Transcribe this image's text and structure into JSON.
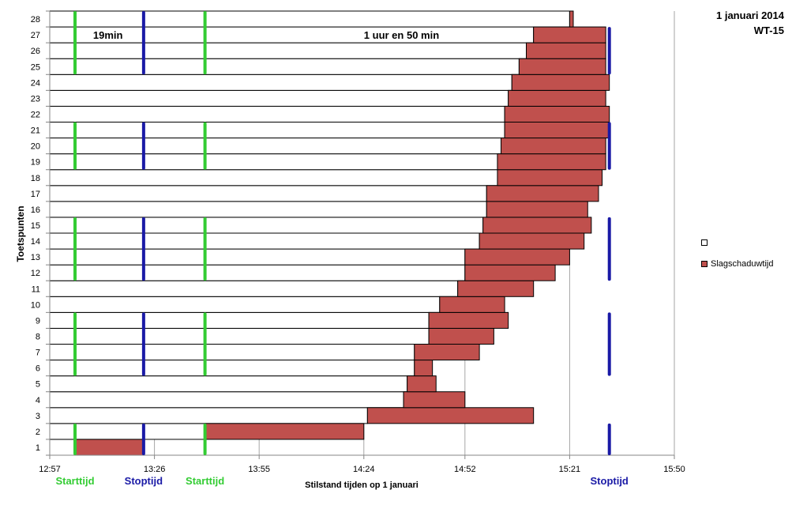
{
  "header": {
    "date": "1 januari 2014",
    "turbine": "WT-15"
  },
  "chart_data": {
    "type": "bar",
    "orientation": "horizontal",
    "stacked": true,
    "title": "",
    "xlabel": "Stilstand tijden op 1 januari",
    "ylabel": "Toetspunten",
    "x_ticks": [
      "12:57",
      "13:26",
      "13:55",
      "14:24",
      "14:52",
      "15:21",
      "15:50"
    ],
    "xlim": [
      "12:57",
      "15:50"
    ],
    "grid": "vertical",
    "legend_position": "right",
    "categories": [
      "1",
      "2",
      "3",
      "4",
      "5",
      "6",
      "7",
      "8",
      "9",
      "10",
      "11",
      "12",
      "13",
      "14",
      "15",
      "16",
      "17",
      "18",
      "19",
      "20",
      "21",
      "22",
      "23",
      "24",
      "25",
      "26",
      "27",
      "28"
    ],
    "series": [
      {
        "name": "",
        "color": "#ffffff",
        "start": [
          "12:57",
          "12:57",
          "12:57",
          "12:57",
          "12:57",
          "12:57",
          "12:57",
          "12:57",
          "12:57",
          "12:57",
          "12:57",
          "12:57",
          "12:57",
          "12:57",
          "12:57",
          "12:57",
          "12:57",
          "12:57",
          "12:57",
          "12:57",
          "12:57",
          "12:57",
          "12:57",
          "12:57",
          "12:57",
          "12:57",
          "12:57",
          "12:57"
        ],
        "end": [
          "13:04",
          "13:40",
          "14:25",
          "14:35",
          "14:36",
          "14:38",
          "14:38",
          "14:42",
          "14:42",
          "14:45",
          "14:50",
          "14:52",
          "14:52",
          "14:56",
          "14:57",
          "14:58",
          "14:58",
          "15:01",
          "15:01",
          "15:02",
          "15:03",
          "15:03",
          "15:04",
          "15:05",
          "15:07",
          "15:09",
          "15:11",
          "15:21"
        ]
      },
      {
        "name": "Slagschaduwtijd",
        "color": "#c0504d",
        "start": [
          "13:04",
          "13:40",
          "14:25",
          "14:35",
          "14:36",
          "14:38",
          "14:38",
          "14:42",
          "14:42",
          "14:45",
          "14:50",
          "14:52",
          "14:52",
          "14:56",
          "14:57",
          "14:58",
          "14:58",
          "15:01",
          "15:01",
          "15:02",
          "15:03",
          "15:03",
          "15:04",
          "15:05",
          "15:07",
          "15:09",
          "15:11",
          "15:21"
        ],
        "end": [
          "13:23",
          "14:24",
          "15:11",
          "14:52",
          "14:44",
          "14:43",
          "14:56",
          "15:00",
          "15:04",
          "15:03",
          "15:11",
          "15:17",
          "15:21",
          "15:25",
          "15:27",
          "15:26",
          "15:29",
          "15:30",
          "15:31",
          "15:31",
          "15:32",
          "15:32",
          "15:31",
          "15:32",
          "15:31",
          "15:31",
          "15:31",
          "15:22"
        ]
      }
    ],
    "annotations": [
      {
        "text": "19min",
        "row": 27,
        "x": "13:09"
      },
      {
        "text": "1 uur en 50 min",
        "row": 27,
        "x": "14:24"
      }
    ],
    "markers": [
      {
        "label": "Starttijd",
        "time": "13:04",
        "color": "#33cc33",
        "rows": [
          [
            1,
            2
          ],
          [
            6,
            9
          ],
          [
            12,
            15
          ],
          [
            19,
            21
          ],
          [
            25,
            28
          ]
        ]
      },
      {
        "label": "Stoptijd",
        "time": "13:23",
        "color": "#1a1aa6",
        "rows": [
          [
            1,
            2
          ],
          [
            6,
            9
          ],
          [
            12,
            15
          ],
          [
            19,
            21
          ],
          [
            25,
            28
          ]
        ]
      },
      {
        "label": "Starttijd",
        "time": "13:40",
        "color": "#33cc33",
        "rows": [
          [
            1,
            2
          ],
          [
            6,
            9
          ],
          [
            12,
            15
          ],
          [
            19,
            21
          ],
          [
            25,
            28
          ]
        ]
      },
      {
        "label": "Stoptijd",
        "time": "15:32",
        "color": "#1a1aa6",
        "rows": [
          [
            1,
            2
          ],
          [
            6,
            9
          ],
          [
            12,
            15
          ],
          [
            19,
            21
          ],
          [
            25,
            27
          ]
        ]
      }
    ]
  }
}
